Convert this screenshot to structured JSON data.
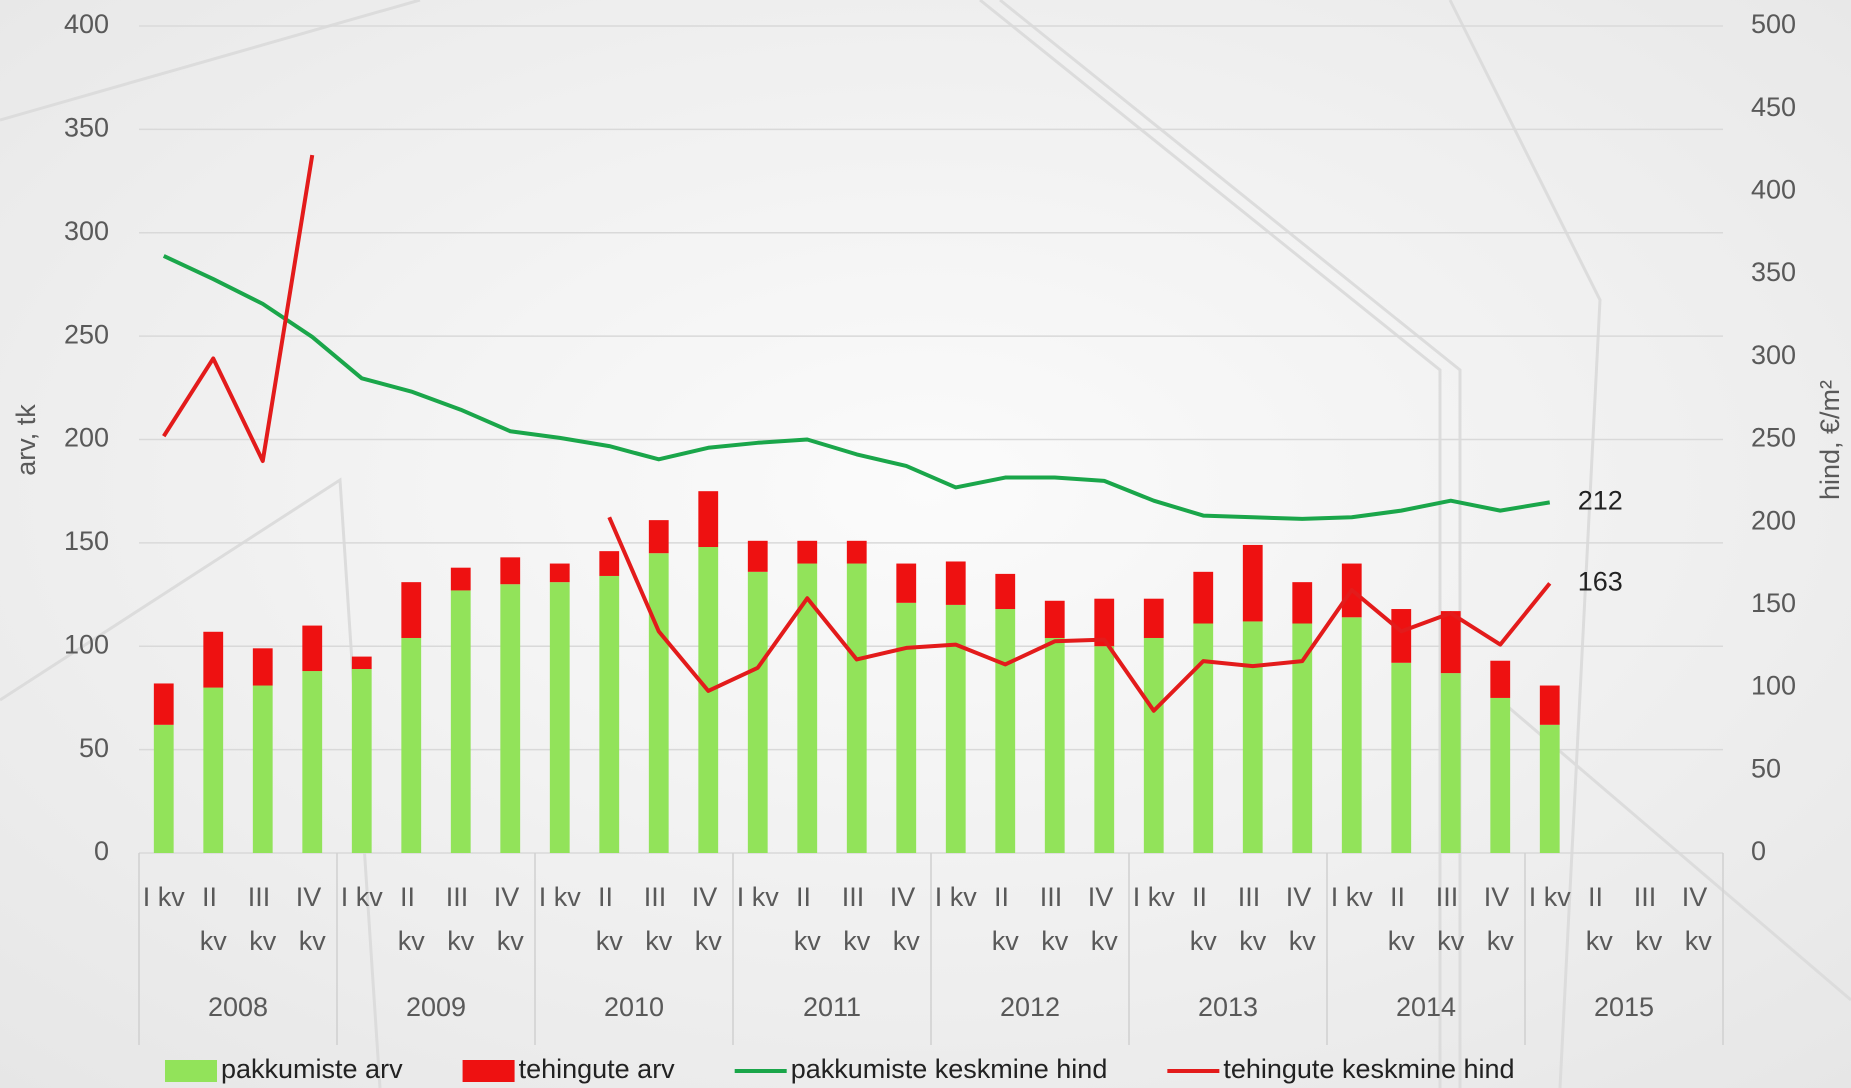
{
  "chart_data": {
    "type": "bar_line",
    "categories": [
      "I kv",
      "II kv",
      "III kv",
      "IV kv",
      "I kv",
      "II kv",
      "III kv",
      "IV kv",
      "I kv",
      "II kv",
      "III kv",
      "IV kv",
      "I kv",
      "II kv",
      "III kv",
      "IV kv",
      "I kv",
      "II kv",
      "III kv",
      "IV kv",
      "I kv",
      "II kv",
      "III kv",
      "IV kv",
      "I kv",
      "II kv",
      "III kv",
      "IV kv",
      "I kv",
      "II kv",
      "III kv",
      "IV kv"
    ],
    "groups": [
      "2008",
      "2009",
      "2010",
      "2011",
      "2012",
      "2013",
      "2014",
      "2015"
    ],
    "ylabel": "arv, tk",
    "y2label": "hind, €/m²",
    "ylim": [
      0,
      400
    ],
    "yticks": [
      0,
      50,
      100,
      150,
      200,
      250,
      300,
      350,
      400
    ],
    "y2lim": [
      0,
      500
    ],
    "y2ticks": [
      0,
      50,
      100,
      150,
      200,
      250,
      300,
      350,
      400,
      450,
      500
    ],
    "grid": true,
    "series": [
      {
        "name": "pakkumiste arv",
        "type": "bar",
        "color": "#92e35a",
        "values": [
          62,
          80,
          81,
          88,
          89,
          104,
          127,
          130,
          131,
          134,
          145,
          148,
          136,
          140,
          140,
          121,
          120,
          118,
          104,
          100,
          104,
          111,
          112,
          111,
          114,
          92,
          87,
          75,
          62,
          null,
          null,
          null
        ]
      },
      {
        "name": "tehingute arv",
        "type": "bar",
        "color": "#ee1111",
        "values": [
          20,
          27,
          18,
          22,
          6,
          27,
          11,
          13,
          9,
          12,
          16,
          27,
          15,
          11,
          11,
          19,
          21,
          17,
          18,
          23,
          19,
          25,
          37,
          20,
          26,
          26,
          30,
          18,
          19,
          null,
          null,
          null
        ]
      },
      {
        "name": "pakkumiste keskmine hind",
        "type": "line",
        "axis": "y2",
        "color": "#1aa64a",
        "values": [
          361,
          347,
          332,
          312,
          287,
          279,
          268,
          255,
          251,
          246,
          238,
          245,
          248,
          250,
          241,
          234,
          221,
          227,
          227,
          225,
          213,
          204,
          203,
          202,
          203,
          207,
          213,
          207,
          212,
          null,
          null,
          null
        ],
        "label_index": 28
      },
      {
        "name": "tehingute keskmine hind",
        "type": "line",
        "axis": "y2",
        "color": "#e31b1b",
        "values": [
          252,
          299,
          237,
          422,
          null,
          null,
          null,
          null,
          null,
          203,
          134,
          98,
          112,
          154,
          117,
          124,
          126,
          114,
          128,
          129,
          86,
          116,
          113,
          116,
          159,
          134,
          145,
          126,
          163,
          null,
          null,
          null
        ],
        "label_index": 28
      }
    ]
  }
}
